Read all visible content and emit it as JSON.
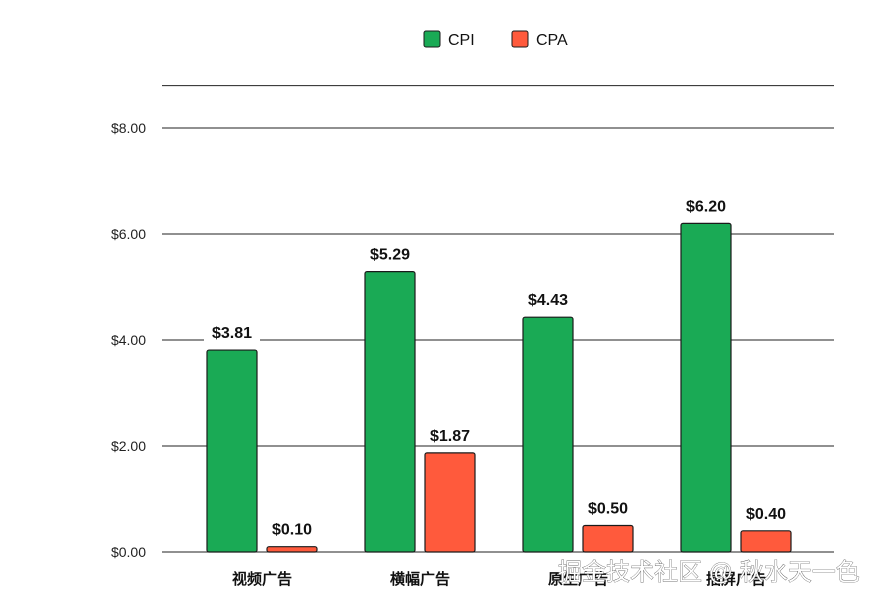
{
  "chart_data": {
    "type": "bar",
    "categories": [
      "视频广告",
      "横幅广告",
      "原生广告",
      "插屏广告"
    ],
    "series": [
      {
        "name": "CPI",
        "values": [
          3.81,
          5.29,
          4.43,
          6.2
        ],
        "labels": [
          "$3.81",
          "$5.29",
          "$4.43",
          "$6.20"
        ],
        "color": "#1aaa55"
      },
      {
        "name": "CPA",
        "values": [
          0.1,
          1.87,
          0.5,
          0.4
        ],
        "labels": [
          "$0.10",
          "$1.87",
          "$0.50",
          "$0.40"
        ],
        "color": "#ff5a3c"
      }
    ],
    "yticks": [
      "$0.00",
      "$2.00",
      "$4.00",
      "$6.00",
      "$8.00"
    ],
    "ylim": [
      0,
      8.8
    ],
    "grid": true,
    "legend_position": "top-center"
  },
  "watermark": "掘金技术社区 @ 秋水天一色"
}
